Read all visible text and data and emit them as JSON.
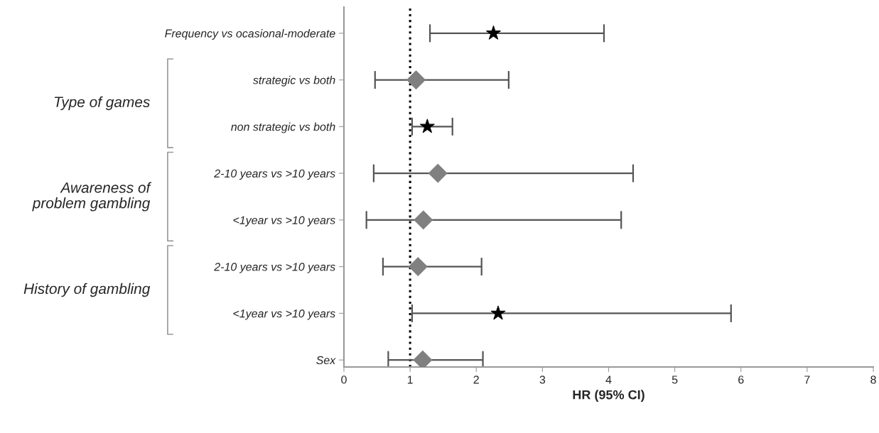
{
  "chart_data": {
    "type": "scatter",
    "orientation": "horizontal",
    "categories": [
      "Frequency vs ocasional-moderate",
      "strategic vs both",
      "non strategic vs both",
      "2-10 years vs >10 years",
      "<1year vs >10 years",
      "2-10 years vs >10 years",
      "<1year vs >10 years",
      "Sex"
    ],
    "series": [
      {
        "color": "#000000",
        "marker": "star",
        "values": [
          2.26,
          null,
          1.26,
          null,
          null,
          null,
          2.33,
          null
        ],
        "errors": [
          [
            1.3,
            3.93
          ],
          null,
          [
            1.03,
            1.64
          ],
          null,
          null,
          null,
          [
            1.03,
            5.85
          ],
          null
        ]
      },
      {
        "color": "#808080",
        "marker": "diamond",
        "values": [
          null,
          1.09,
          null,
          1.42,
          1.2,
          1.12,
          null,
          1.19
        ],
        "errors": [
          null,
          [
            0.47,
            2.49
          ],
          null,
          [
            0.45,
            4.37
          ],
          [
            0.34,
            4.19
          ],
          [
            0.59,
            2.08
          ],
          null,
          [
            0.67,
            2.1
          ]
        ]
      }
    ],
    "xlabel": "HR (95% CI)",
    "xlim": [
      0,
      8
    ],
    "xticks": [
      0,
      1,
      2,
      3,
      4,
      5,
      6,
      7,
      8
    ],
    "ref_lines": [
      {
        "axis": "x",
        "value": 1,
        "line_style": "dotted",
        "color": "#000000"
      }
    ],
    "annotations": [
      "Type of games",
      "Awareness of\nproblem gambling",
      "History of gambling"
    ],
    "grid": false,
    "legend": false
  }
}
